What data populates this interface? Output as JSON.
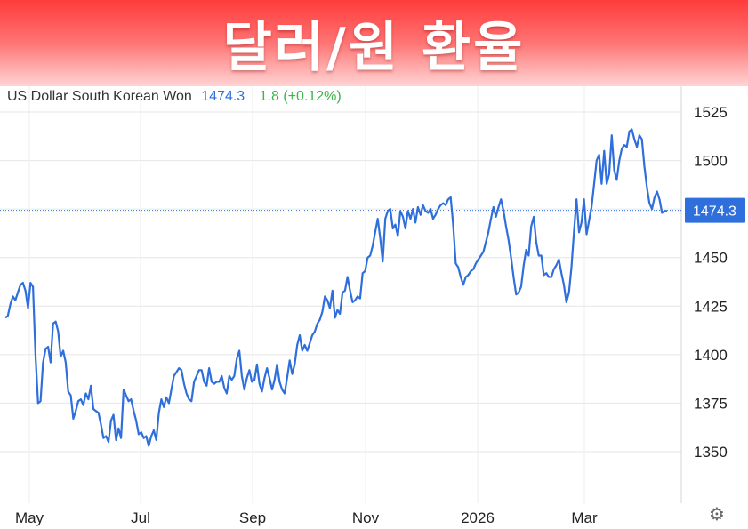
{
  "banner": {
    "title": "달러/원 환율"
  },
  "header": {
    "instrument": "US Dollar South Korean Won",
    "price": "1474.3",
    "change": "1.8 (+0.12%)"
  },
  "icons": {
    "settings": "gear-icon"
  },
  "colors": {
    "line": "#2f6fdb",
    "change_positive": "#3cb44b",
    "banner": "#ff4a4a",
    "grid": "#e6e6e6"
  },
  "chart_data": {
    "type": "line",
    "title": "",
    "xlabel": "",
    "ylabel": "",
    "x_tick_labels": [
      "May",
      "Jul",
      "Sep",
      "Nov",
      "2026",
      "Mar"
    ],
    "y_ticks": [
      1350,
      1375,
      1400,
      1425,
      1450,
      1475,
      1500,
      1525
    ],
    "y_tick_labels": [
      "1350",
      "1375",
      "1400",
      "1425",
      "1450",
      "1500",
      "1525"
    ],
    "ylim": [
      1325,
      1537
    ],
    "grid": true,
    "last_value": 1474.3,
    "last_value_label": "1474.3",
    "series": [
      {
        "values": [
          1419,
          1420,
          1426,
          1430,
          1428,
          1432,
          1436,
          1437,
          1433,
          1424,
          1437,
          1435,
          1400,
          1375,
          1376,
          1396,
          1403,
          1404,
          1396,
          1416,
          1417,
          1412,
          1399,
          1402,
          1396,
          1381,
          1379,
          1367,
          1371,
          1376,
          1377,
          1374,
          1380,
          1377,
          1384,
          1372,
          1371,
          1370,
          1364,
          1357,
          1358,
          1355,
          1366,
          1369,
          1356,
          1362,
          1357,
          1382,
          1379,
          1376,
          1377,
          1371,
          1366,
          1359,
          1360,
          1357,
          1358,
          1353,
          1358,
          1361,
          1356,
          1370,
          1377,
          1373,
          1378,
          1375,
          1382,
          1389,
          1391,
          1393,
          1392,
          1385,
          1380,
          1377,
          1376,
          1386,
          1389,
          1392,
          1392,
          1386,
          1384,
          1393,
          1386,
          1385,
          1386,
          1386,
          1389,
          1383,
          1380,
          1389,
          1387,
          1389,
          1398,
          1402,
          1389,
          1382,
          1388,
          1392,
          1386,
          1387,
          1395,
          1385,
          1381,
          1388,
          1393,
          1388,
          1382,
          1387,
          1395,
          1386,
          1382,
          1380,
          1388,
          1397,
          1390,
          1395,
          1405,
          1410,
          1402,
          1405,
          1402,
          1406,
          1410,
          1412,
          1416,
          1418,
          1422,
          1430,
          1428,
          1424,
          1433,
          1419,
          1423,
          1421,
          1432,
          1433,
          1440,
          1433,
          1427,
          1428,
          1430,
          1429,
          1442,
          1443,
          1450,
          1451,
          1456,
          1463,
          1470,
          1460,
          1448,
          1470,
          1474,
          1475,
          1465,
          1467,
          1461,
          1474,
          1471,
          1465,
          1474,
          1470,
          1475,
          1468,
          1476,
          1472,
          1477,
          1474,
          1473,
          1475,
          1470,
          1472,
          1475,
          1477,
          1478,
          1477,
          1480,
          1481,
          1467,
          1447,
          1445,
          1440,
          1436,
          1440,
          1441,
          1443,
          1444,
          1447,
          1449,
          1451,
          1453,
          1458,
          1463,
          1470,
          1476,
          1471,
          1476,
          1480,
          1474,
          1466,
          1459,
          1450,
          1440,
          1431,
          1432,
          1435,
          1446,
          1454,
          1451,
          1466,
          1471,
          1458,
          1451,
          1451,
          1441,
          1442,
          1440,
          1440,
          1444,
          1446,
          1449,
          1442,
          1436,
          1427,
          1432,
          1445,
          1463,
          1480,
          1463,
          1468,
          1480,
          1462,
          1469,
          1476,
          1488,
          1500,
          1503,
          1488,
          1505,
          1488,
          1493,
          1513,
          1495,
          1490,
          1500,
          1506,
          1508,
          1507,
          1515,
          1516,
          1511,
          1507,
          1513,
          1511,
          1497,
          1486,
          1478,
          1475,
          1481,
          1484,
          1480,
          1473,
          1474,
          1474
        ]
      }
    ]
  }
}
